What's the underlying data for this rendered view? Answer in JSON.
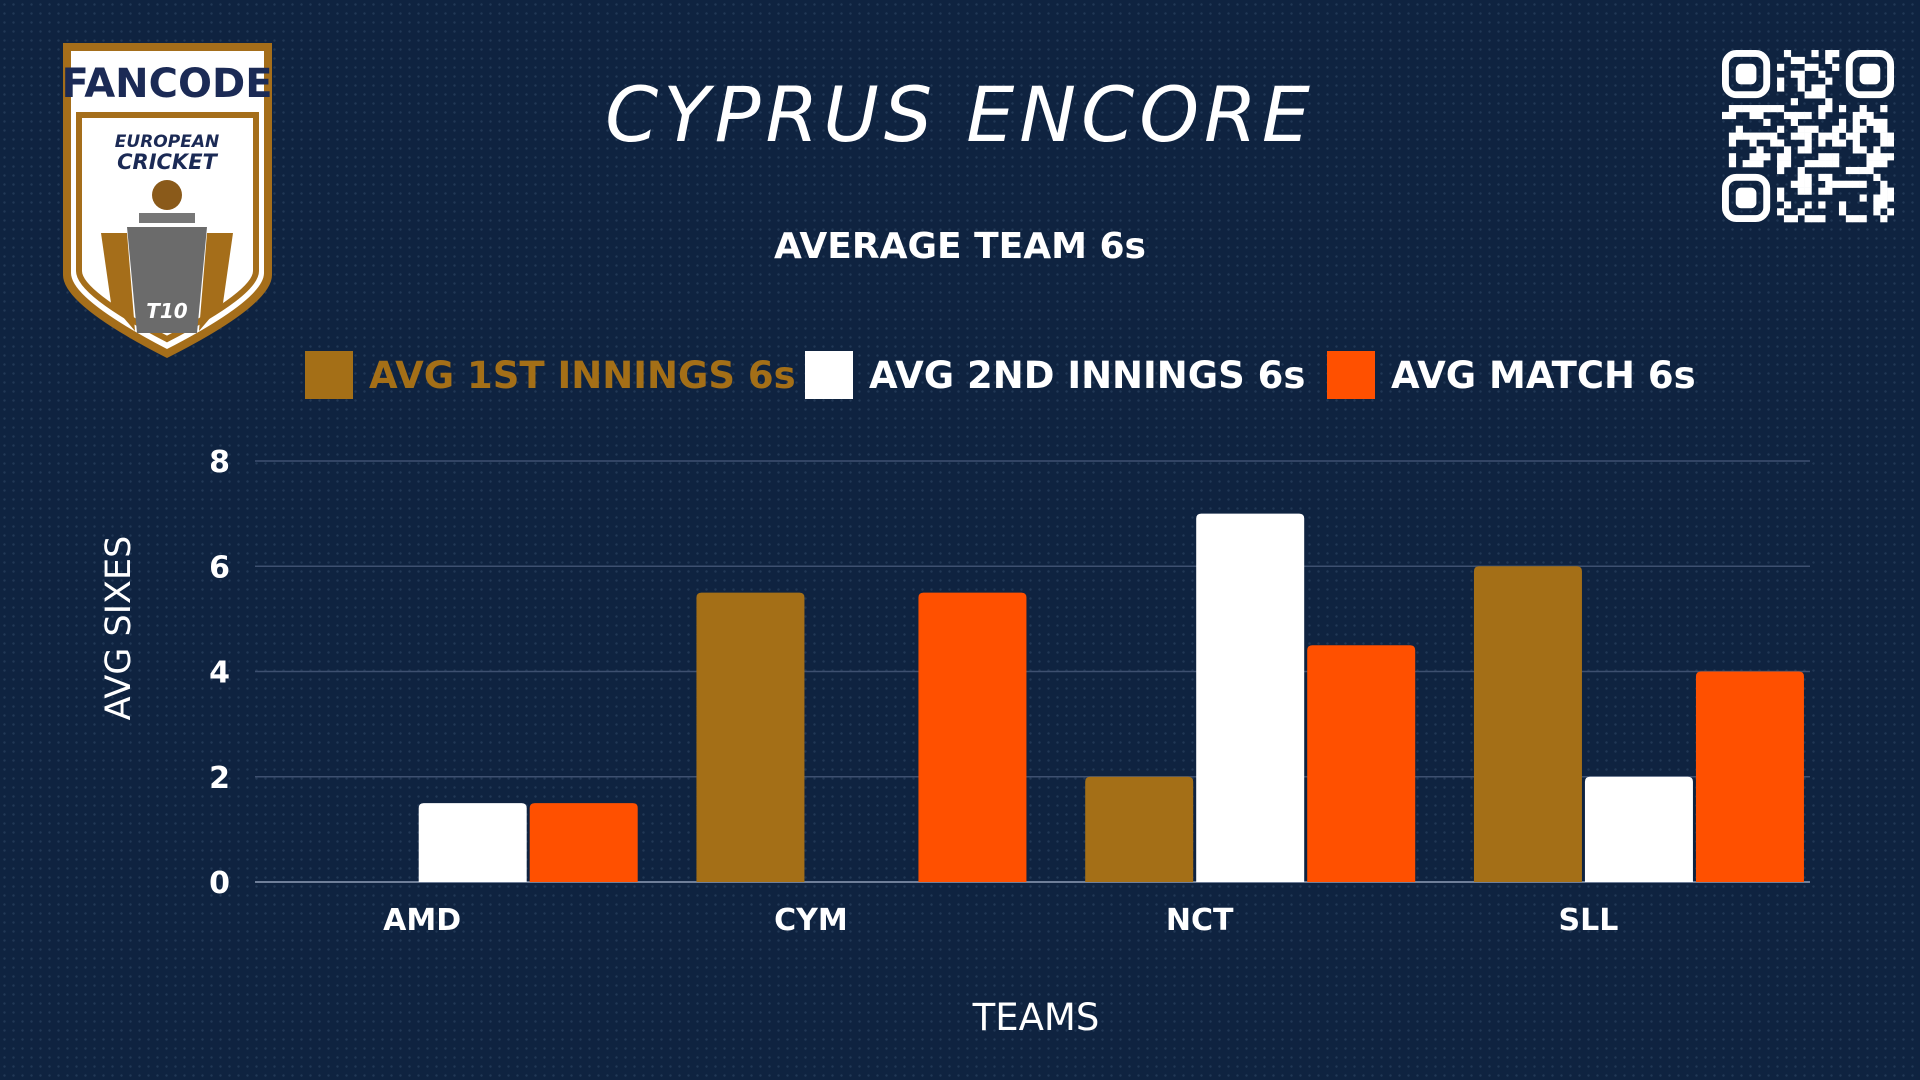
{
  "header": {
    "title": "CYPRUS ENCORE",
    "subtitle": "AVERAGE TEAM 6s"
  },
  "logo": {
    "brand": "FANCODE",
    "line1": "EUROPEAN",
    "line2": "CRICKET",
    "badge": "T10",
    "colors": {
      "gold": "#a56e1a",
      "navy": "#1b2a55",
      "red": "#e1382c"
    }
  },
  "qr": {
    "icon": "qr-code-icon"
  },
  "chart_data": {
    "type": "bar",
    "title": "AVERAGE TEAM 6s",
    "xlabel": "TEAMS",
    "ylabel": "AVG SIXES",
    "categories": [
      "AMD",
      "CYM",
      "NCT",
      "SLL"
    ],
    "series": [
      {
        "name": "AVG 1ST INNINGS 6s",
        "values": [
          0,
          5.5,
          2,
          6
        ],
        "color": "#a46f17"
      },
      {
        "name": "AVG 2ND INNINGS 6s",
        "values": [
          1.5,
          0,
          7,
          2
        ],
        "color": "#ffffff"
      },
      {
        "name": "AVG MATCH 6s",
        "values": [
          1.5,
          5.5,
          4.5,
          4
        ],
        "color": "#ff5000"
      }
    ],
    "ylim": [
      0,
      8
    ],
    "yticks": [
      "0",
      "2",
      "4",
      "6",
      "8"
    ],
    "grid": true,
    "legend": "top"
  }
}
